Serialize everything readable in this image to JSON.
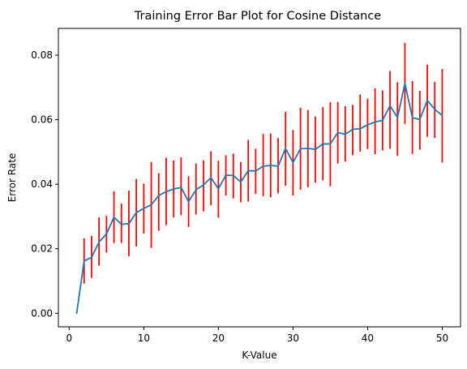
{
  "chart_data": {
    "type": "line",
    "title": "Training Error Bar Plot for Cosine Distance",
    "xlabel": "K-Value",
    "ylabel": "Error Rate",
    "xlim": [
      -1.45,
      52.45
    ],
    "ylim": [
      -0.0042,
      0.0883
    ],
    "xticks": [
      0,
      10,
      20,
      30,
      40,
      50
    ],
    "yticks": [
      0.0,
      0.02,
      0.04,
      0.06,
      0.08
    ],
    "xtick_labels": [
      "0",
      "10",
      "20",
      "30",
      "40",
      "50"
    ],
    "ytick_labels": [
      "0.00",
      "0.02",
      "0.04",
      "0.06",
      "0.08"
    ],
    "grid": false,
    "line_color": "#1f77b4",
    "errorbar_color": "#ff0000",
    "series": [
      {
        "x": [
          1,
          2,
          3,
          4,
          5,
          6,
          7,
          8,
          9,
          10,
          11,
          12,
          13,
          14,
          15,
          16,
          17,
          18,
          19,
          20,
          21,
          22,
          23,
          24,
          25,
          26,
          27,
          28,
          29,
          30,
          31,
          32,
          33,
          34,
          35,
          36,
          37,
          38,
          39,
          40,
          41,
          42,
          43,
          44,
          45,
          46,
          47,
          48,
          49,
          50
        ],
        "y": [
          0.0,
          0.0162,
          0.0173,
          0.0221,
          0.0246,
          0.0298,
          0.0276,
          0.0278,
          0.0312,
          0.0325,
          0.0336,
          0.0365,
          0.0377,
          0.0385,
          0.039,
          0.0346,
          0.0383,
          0.0398,
          0.042,
          0.0386,
          0.0428,
          0.0427,
          0.0407,
          0.0442,
          0.0441,
          0.0456,
          0.0458,
          0.0456,
          0.0511,
          0.0467,
          0.051,
          0.0511,
          0.0508,
          0.0525,
          0.0525,
          0.056,
          0.0555,
          0.057,
          0.0572,
          0.0584,
          0.0593,
          0.0598,
          0.0643,
          0.0607,
          0.0712,
          0.0606,
          0.0601,
          0.066,
          0.0632,
          0.0613
        ],
        "err_low": [
          0.0,
          0.0092,
          0.011,
          0.0148,
          0.0188,
          0.0218,
          0.0218,
          0.0177,
          0.0207,
          0.0247,
          0.0203,
          0.0256,
          0.0273,
          0.0297,
          0.0304,
          0.0268,
          0.0306,
          0.0316,
          0.0335,
          0.0296,
          0.0365,
          0.0356,
          0.0344,
          0.0346,
          0.037,
          0.0363,
          0.036,
          0.0372,
          0.0395,
          0.0365,
          0.0383,
          0.0391,
          0.0405,
          0.0412,
          0.0394,
          0.0464,
          0.047,
          0.049,
          0.0501,
          0.0509,
          0.0493,
          0.0505,
          0.051,
          0.0488,
          0.0587,
          0.0494,
          0.0507,
          0.0547,
          0.0543,
          0.0467
        ],
        "err_high": [
          0.0,
          0.0232,
          0.024,
          0.0297,
          0.0302,
          0.0378,
          0.034,
          0.038,
          0.0416,
          0.0402,
          0.0469,
          0.0434,
          0.0482,
          0.0474,
          0.0483,
          0.0425,
          0.0464,
          0.0474,
          0.0502,
          0.0473,
          0.049,
          0.0495,
          0.0469,
          0.0537,
          0.051,
          0.0556,
          0.0557,
          0.0543,
          0.0624,
          0.0568,
          0.0637,
          0.063,
          0.061,
          0.0639,
          0.0654,
          0.0655,
          0.0642,
          0.0646,
          0.0678,
          0.0665,
          0.0697,
          0.0691,
          0.0751,
          0.0716,
          0.0838,
          0.072,
          0.0689,
          0.0771,
          0.0717,
          0.0757
        ]
      }
    ]
  }
}
